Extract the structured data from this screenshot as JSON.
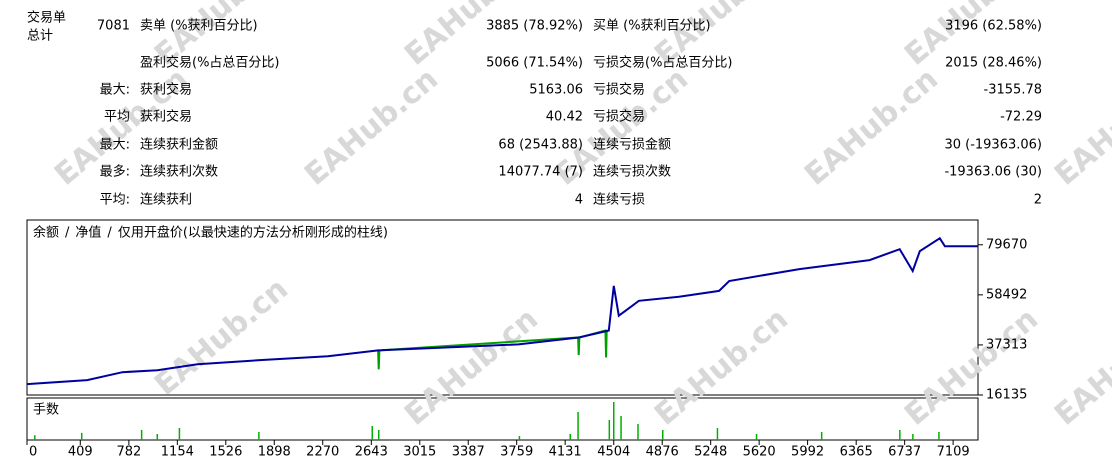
{
  "watermark": "EAHub.cn",
  "stats": {
    "head": {
      "label1": "交易单",
      "label2": "总计",
      "value": "7081"
    },
    "rows": [
      {
        "l1": "卖单 (%获利百分比)",
        "v1": "3885 (78.92%)",
        "l2": "买单 (%获利百分比)",
        "v2": "3196 (62.58%)"
      },
      {
        "l1": "盈利交易(%占总百分比)",
        "v1": "5066 (71.54%)",
        "l2": "亏损交易(%占总百分比)",
        "v2": "2015 (28.46%)"
      },
      {
        "prefix": "最大:",
        "l1": "获利交易",
        "v1": "5163.06",
        "l2": "亏损交易",
        "v2": "-3155.78"
      },
      {
        "prefix": "平均",
        "l1": "获利交易",
        "v1": "40.42",
        "l2": "亏损交易",
        "v2": "-72.29"
      },
      {
        "prefix": "最大:",
        "l1": "连续获利金额",
        "v1": "68 (2543.88)",
        "l2": "连续亏损金额",
        "v2": "30 (-19363.06)"
      },
      {
        "prefix": "最多:",
        "l1": "连续获利次数",
        "v1": "14077.74 (7)",
        "l2": "连续亏损次数",
        "v2": "-19363.06 (30)"
      },
      {
        "prefix": "平均:",
        "l1": "连续获利",
        "v1": "4",
        "l2": "连续亏损",
        "v2": "2"
      }
    ]
  },
  "chart_data": {
    "type": "line",
    "subtitle": "仅用开盘价(以最快速的方法分析刚形成的柱线)",
    "subtitle_color": "#ff0000",
    "legend_separator": "/",
    "grid": false,
    "xlim": [
      0,
      7300
    ],
    "xticks": [
      0,
      409,
      782,
      1154,
      1526,
      1898,
      2270,
      2643,
      3015,
      3387,
      3759,
      4131,
      4504,
      4876,
      5248,
      5620,
      5992,
      6365,
      6737,
      7109
    ],
    "ylim": [
      16135,
      90150
    ],
    "yticks": [
      16135,
      37313,
      58492,
      79670
    ],
    "series": [
      {
        "name": "余额",
        "color": "#0000a0",
        "x": [
          0,
          462,
          732,
          1001,
          1309,
          1771,
          2310,
          2695,
          3234,
          3773,
          4235,
          4466,
          4504,
          4543,
          4697,
          5005,
          5313,
          5390,
          5929,
          6468,
          6699,
          6799,
          6853,
          7007,
          7046,
          7300
        ],
        "values": [
          20744,
          22426,
          25781,
          26620,
          29136,
          30814,
          32492,
          35008,
          36266,
          37524,
          40460,
          43396,
          62269,
          49687,
          55978,
          57655,
          60172,
          64366,
          69398,
          73173,
          77787,
          68559,
          76948,
          82400,
          79045,
          79045
        ]
      },
      {
        "name": "净值",
        "color": "#00a000",
        "x": [
          2695,
          2700,
          2705,
          4230,
          4235,
          4240,
          4440,
          4445,
          4450
        ],
        "values": [
          35008,
          27000,
          35008,
          40460,
          33000,
          40460,
          43396,
          32000,
          43396
        ]
      }
    ],
    "volume": {
      "title": "手数",
      "ylim": [
        0,
        100
      ],
      "x": [
        60,
        420,
        880,
        1000,
        1170,
        1780,
        2650,
        2700,
        3780,
        4170,
        4230,
        4470,
        4504,
        4560,
        4690,
        4880,
        5300,
        5600,
        6100,
        6700,
        6800,
        7000
      ],
      "values": [
        12,
        18,
        25,
        15,
        30,
        20,
        35,
        25,
        10,
        15,
        70,
        50,
        95,
        60,
        40,
        25,
        30,
        15,
        20,
        25,
        15,
        20
      ]
    }
  }
}
